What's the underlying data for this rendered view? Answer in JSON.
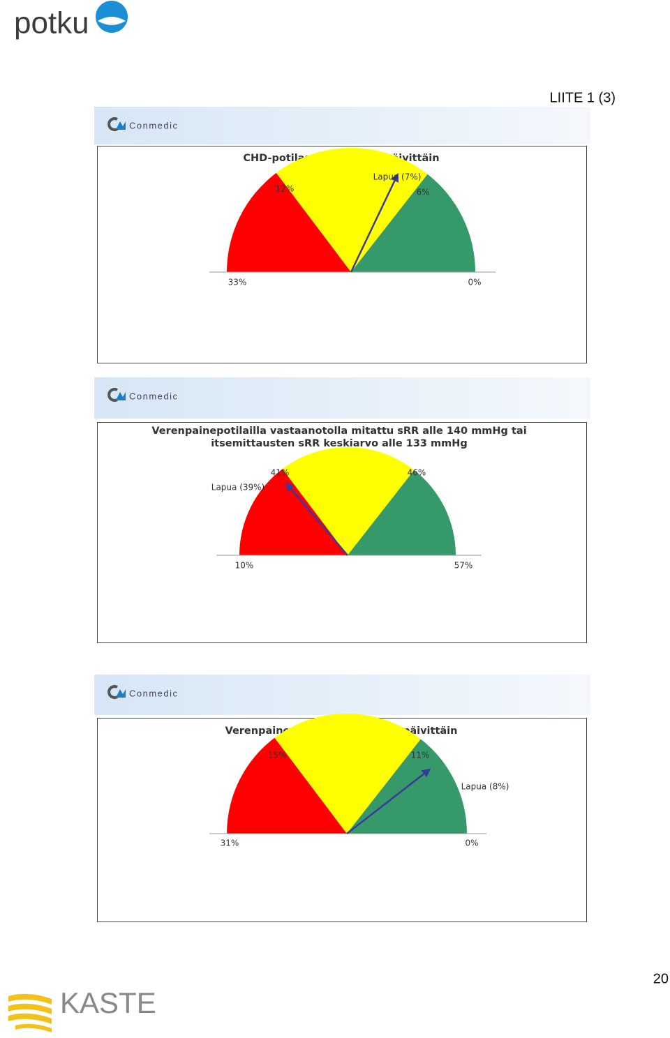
{
  "header": {
    "logo": "potku",
    "attachment": "LIITE 1 (3)"
  },
  "slides": [
    {
      "brand": "Conmedic",
      "title_lines": [
        "CHD-potilaat tupakoivat päivittäin"
      ],
      "scale": [
        33,
        12,
        6,
        0
      ],
      "scale_labels": [
        "33%",
        "12%",
        "6%",
        "0%"
      ],
      "pointer": {
        "label": "Lapua (7%)",
        "value": 7
      }
    },
    {
      "brand": "Conmedic",
      "title_lines": [
        "Verenpainepotilailla vastaanotolla mitattu sRR alle 140 mmHg tai",
        "itsemittausten sRR keskiarvo alle 133 mmHg"
      ],
      "scale": [
        10,
        41,
        46,
        57
      ],
      "scale_labels": [
        "10%",
        "41%",
        "46%",
        "57%"
      ],
      "pointer": {
        "label": "Lapua (39%)",
        "value": 39
      }
    },
    {
      "brand": "Conmedic",
      "title_lines": [
        "Verenpainepotilaat tupakoivat päivittäin"
      ],
      "scale": [
        31,
        15,
        11,
        0
      ],
      "scale_labels": [
        "31%",
        "15%",
        "11%",
        "0%"
      ],
      "pointer": {
        "label": "Lapua (8%)",
        "value": 8
      }
    }
  ],
  "footer": {
    "logo": "KASTE",
    "page": "20"
  }
}
